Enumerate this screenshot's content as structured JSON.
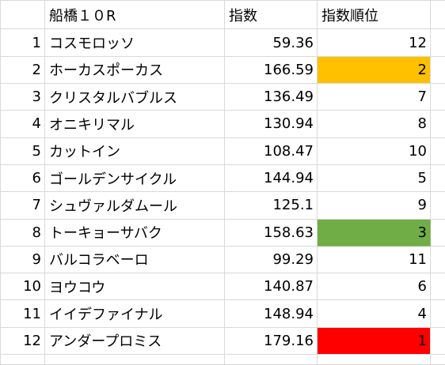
{
  "header": {
    "title": "船橋１０R",
    "col_index": "指数",
    "col_rank": "指数順位"
  },
  "highlight_colors": {
    "gold": "#ffc000",
    "green": "#70ad47",
    "red": "#ff0000"
  },
  "rows": [
    {
      "no": "1",
      "name": "コスモロッソ",
      "index": "59.36",
      "rank": "12",
      "highlight": ""
    },
    {
      "no": "2",
      "name": "ホーカスポーカス",
      "index": "166.59",
      "rank": "2",
      "highlight": "gold"
    },
    {
      "no": "3",
      "name": "クリスタルバブルス",
      "index": "136.49",
      "rank": "7",
      "highlight": ""
    },
    {
      "no": "4",
      "name": "オニキリマル",
      "index": "130.94",
      "rank": "8",
      "highlight": ""
    },
    {
      "no": "5",
      "name": "カットイン",
      "index": "108.47",
      "rank": "10",
      "highlight": ""
    },
    {
      "no": "6",
      "name": "ゴールデンサイクル",
      "index": "144.94",
      "rank": "5",
      "highlight": ""
    },
    {
      "no": "7",
      "name": "シュヴァルダムール",
      "index": "125.1",
      "rank": "9",
      "highlight": ""
    },
    {
      "no": "8",
      "name": "トーキョーサバク",
      "index": "158.63",
      "rank": "3",
      "highlight": "green"
    },
    {
      "no": "9",
      "name": "バルコラベーロ",
      "index": "99.29",
      "rank": "11",
      "highlight": ""
    },
    {
      "no": "10",
      "name": "ヨウコウ",
      "index": "140.87",
      "rank": "6",
      "highlight": ""
    },
    {
      "no": "11",
      "name": "イイデファイナル",
      "index": "148.94",
      "rank": "4",
      "highlight": ""
    },
    {
      "no": "12",
      "name": "アンダープロミス",
      "index": "179.16",
      "rank": "1",
      "highlight": "red"
    }
  ]
}
